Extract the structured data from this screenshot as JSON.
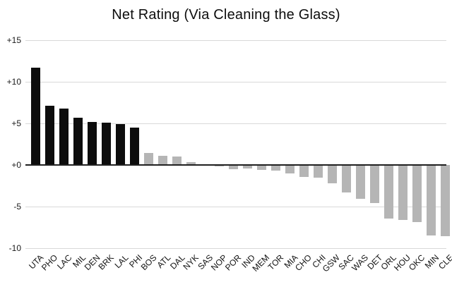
{
  "title": "Net Rating (Via Cleaning the Glass)",
  "colors": {
    "highlight_bar": "#0d0d0d",
    "default_bar": "#b5b5b5",
    "gridline": "#d9d9d9",
    "zero_line": "#1f1f1f",
    "background": "#ffffff",
    "text": "#111111"
  },
  "chart_data": {
    "type": "bar",
    "title": "Net Rating (Via Cleaning the Glass)",
    "xlabel": "",
    "ylabel": "",
    "ylim": [
      -10,
      15
    ],
    "grid": true,
    "legend": "none",
    "yticks": [
      {
        "value": 15,
        "label": "+15"
      },
      {
        "value": 10,
        "label": "+10"
      },
      {
        "value": 5,
        "label": "+5"
      },
      {
        "value": 0,
        "label": "+0"
      },
      {
        "value": -5,
        "label": "-5"
      },
      {
        "value": -10,
        "label": "-10"
      }
    ],
    "highlight_count": 8,
    "categories": [
      "UTA",
      "PHO",
      "LAC",
      "MIL",
      "DEN",
      "BRK",
      "LAL",
      "PHI",
      "BOS",
      "ATL",
      "DAL",
      "NYK",
      "SAS",
      "NOP",
      "POR",
      "IND",
      "MEM",
      "TOR",
      "MIA",
      "CHO",
      "CHI",
      "GSW",
      "SAC",
      "WAS",
      "DET",
      "ORL",
      "HOU",
      "OKC",
      "MIN",
      "CLE"
    ],
    "values": [
      11.7,
      7.1,
      6.8,
      5.7,
      5.2,
      5.1,
      4.9,
      4.5,
      1.4,
      1.1,
      1.0,
      0.3,
      0.1,
      -0.2,
      -0.5,
      -0.4,
      -0.6,
      -0.7,
      -1.0,
      -1.4,
      -1.5,
      -2.2,
      -3.3,
      -4.1,
      -4.6,
      -6.4,
      -6.6,
      -6.9,
      -8.5,
      -8.6
    ]
  }
}
